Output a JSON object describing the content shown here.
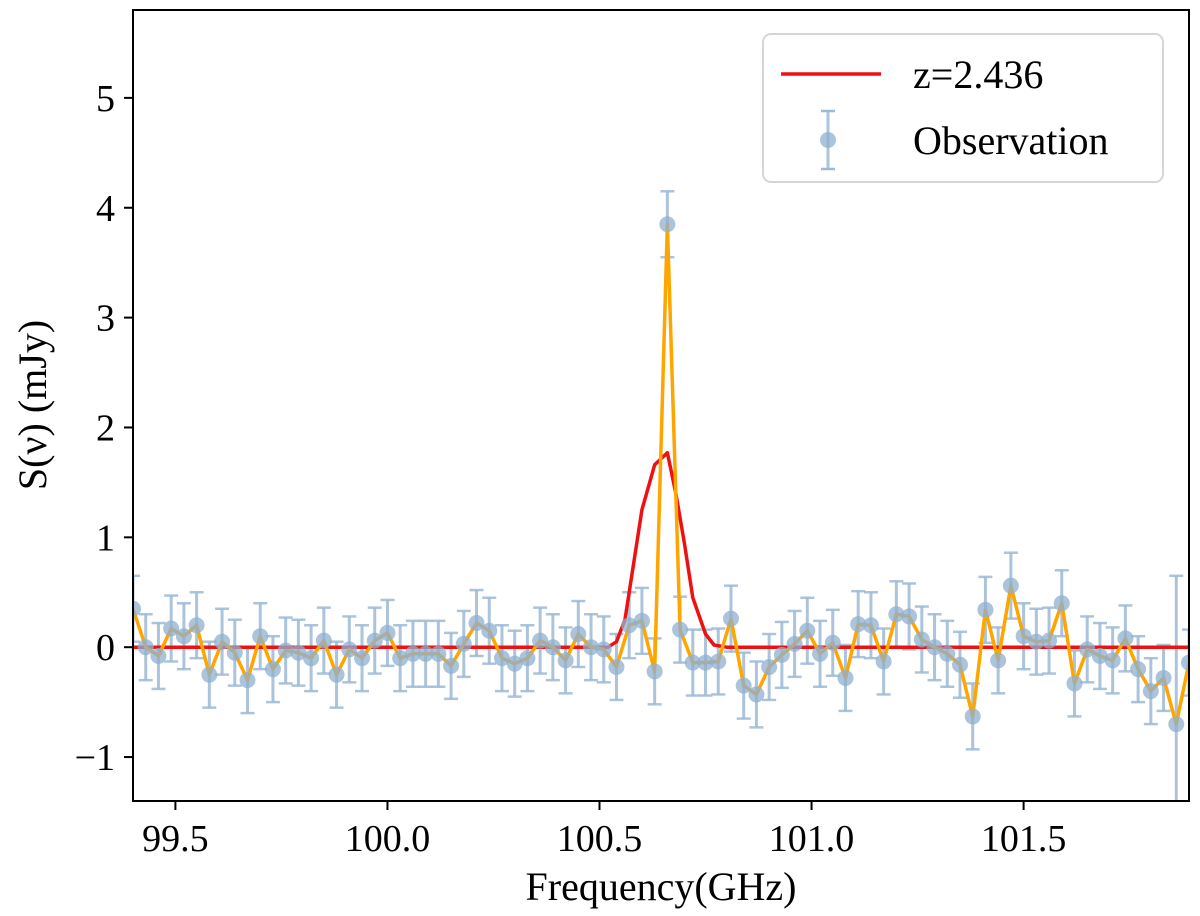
{
  "chart_data": {
    "type": "line",
    "title": "",
    "xlabel": "Frequency(GHz)",
    "ylabel": "S(ν) (mJy)",
    "xlim": [
      99.4,
      101.89
    ],
    "ylim": [
      -1.4,
      5.8
    ],
    "x_ticks": [
      99.5,
      100.0,
      100.5,
      101.0,
      101.5
    ],
    "x_tick_labels": [
      "99.5",
      "100.0",
      "100.5",
      "101.0",
      "101.5"
    ],
    "y_ticks": [
      -1,
      0,
      1,
      2,
      3,
      4,
      5
    ],
    "y_tick_labels": [
      "−1",
      "0",
      "1",
      "2",
      "3",
      "4",
      "5"
    ],
    "grid": false,
    "legend_position": "top-right",
    "colors": {
      "model": "#ee1111",
      "observation_points": "#8fb0d0",
      "observation_errorbars": "#9dbad6",
      "connecting_line": "#ffa500"
    },
    "series": [
      {
        "name": "z=2.436",
        "kind": "model-line",
        "x": [
          99.4,
          100.52,
          100.54,
          100.56,
          100.58,
          100.6,
          100.63,
          100.66,
          100.68,
          100.7,
          100.72,
          100.75,
          100.77,
          100.8,
          101.89
        ],
        "y": [
          0,
          0,
          0.05,
          0.25,
          0.75,
          1.25,
          1.66,
          1.77,
          1.4,
          0.95,
          0.45,
          0.12,
          0.02,
          0,
          0
        ]
      },
      {
        "name": "Observation",
        "kind": "errorbar-points",
        "x": [
          99.4,
          99.43,
          99.46,
          99.49,
          99.52,
          99.55,
          99.58,
          99.61,
          99.64,
          99.67,
          99.7,
          99.73,
          99.76,
          99.79,
          99.82,
          99.85,
          99.88,
          99.91,
          99.94,
          99.97,
          100.0,
          100.03,
          100.06,
          100.09,
          100.12,
          100.15,
          100.18,
          100.21,
          100.24,
          100.27,
          100.3,
          100.33,
          100.36,
          100.39,
          100.42,
          100.45,
          100.48,
          100.51,
          100.54,
          100.57,
          100.6,
          100.63,
          100.66,
          100.69,
          100.72,
          100.75,
          100.78,
          100.81,
          100.84,
          100.87,
          100.9,
          100.93,
          100.96,
          100.99,
          101.02,
          101.05,
          101.08,
          101.11,
          101.14,
          101.17,
          101.2,
          101.23,
          101.26,
          101.29,
          101.32,
          101.35,
          101.38,
          101.41,
          101.44,
          101.47,
          101.5,
          101.53,
          101.56,
          101.59,
          101.62,
          101.65,
          101.68,
          101.71,
          101.74,
          101.77,
          101.8,
          101.83,
          101.86,
          101.89
        ],
        "y": [
          0.35,
          0,
          -0.08,
          0.17,
          0.1,
          0.2,
          -0.25,
          0.05,
          -0.05,
          -0.3,
          0.1,
          -0.2,
          -0.03,
          -0.05,
          -0.1,
          0.06,
          -0.25,
          -0.02,
          -0.1,
          0.06,
          0.13,
          -0.1,
          -0.06,
          -0.06,
          -0.06,
          -0.17,
          0.03,
          0.22,
          0.15,
          -0.1,
          -0.15,
          -0.1,
          0.06,
          0,
          -0.12,
          0.12,
          0,
          -0.02,
          -0.18,
          0.2,
          0.24,
          -0.22,
          3.85,
          0.16,
          -0.14,
          -0.14,
          -0.13,
          0.26,
          -0.35,
          -0.43,
          -0.18,
          -0.07,
          0.03,
          0.15,
          -0.06,
          0.04,
          -0.28,
          0.21,
          0.2,
          -0.13,
          0.3,
          0.28,
          0.07,
          0,
          -0.06,
          -0.16,
          -0.63,
          0.34,
          -0.12,
          0.56,
          0.1,
          0.05,
          0.06,
          0.4,
          -0.33,
          -0.02,
          -0.08,
          -0.12,
          0.08,
          -0.2,
          -0.4,
          -0.28,
          -0.7,
          -0.14
        ],
        "yerr": [
          0.3,
          0.3,
          0.3,
          0.3,
          0.3,
          0.3,
          0.3,
          0.3,
          0.3,
          0.3,
          0.3,
          0.3,
          0.3,
          0.3,
          0.3,
          0.3,
          0.3,
          0.3,
          0.3,
          0.3,
          0.3,
          0.3,
          0.3,
          0.3,
          0.3,
          0.3,
          0.3,
          0.3,
          0.3,
          0.3,
          0.3,
          0.3,
          0.3,
          0.3,
          0.3,
          0.3,
          0.3,
          0.3,
          0.3,
          0.3,
          0.3,
          0.3,
          0.3,
          0.3,
          0.3,
          0.3,
          0.3,
          0.3,
          0.3,
          0.3,
          0.3,
          0.3,
          0.3,
          0.3,
          0.3,
          0.3,
          0.3,
          0.3,
          0.3,
          0.3,
          0.3,
          0.3,
          0.3,
          0.3,
          0.3,
          0.3,
          0.3,
          0.3,
          0.3,
          0.3,
          0.3,
          0.3,
          0.3,
          0.3,
          0.3,
          0.3,
          0.3,
          0.3,
          0.3,
          0.3,
          0.3,
          0.3,
          1.35,
          0.3
        ]
      }
    ]
  }
}
